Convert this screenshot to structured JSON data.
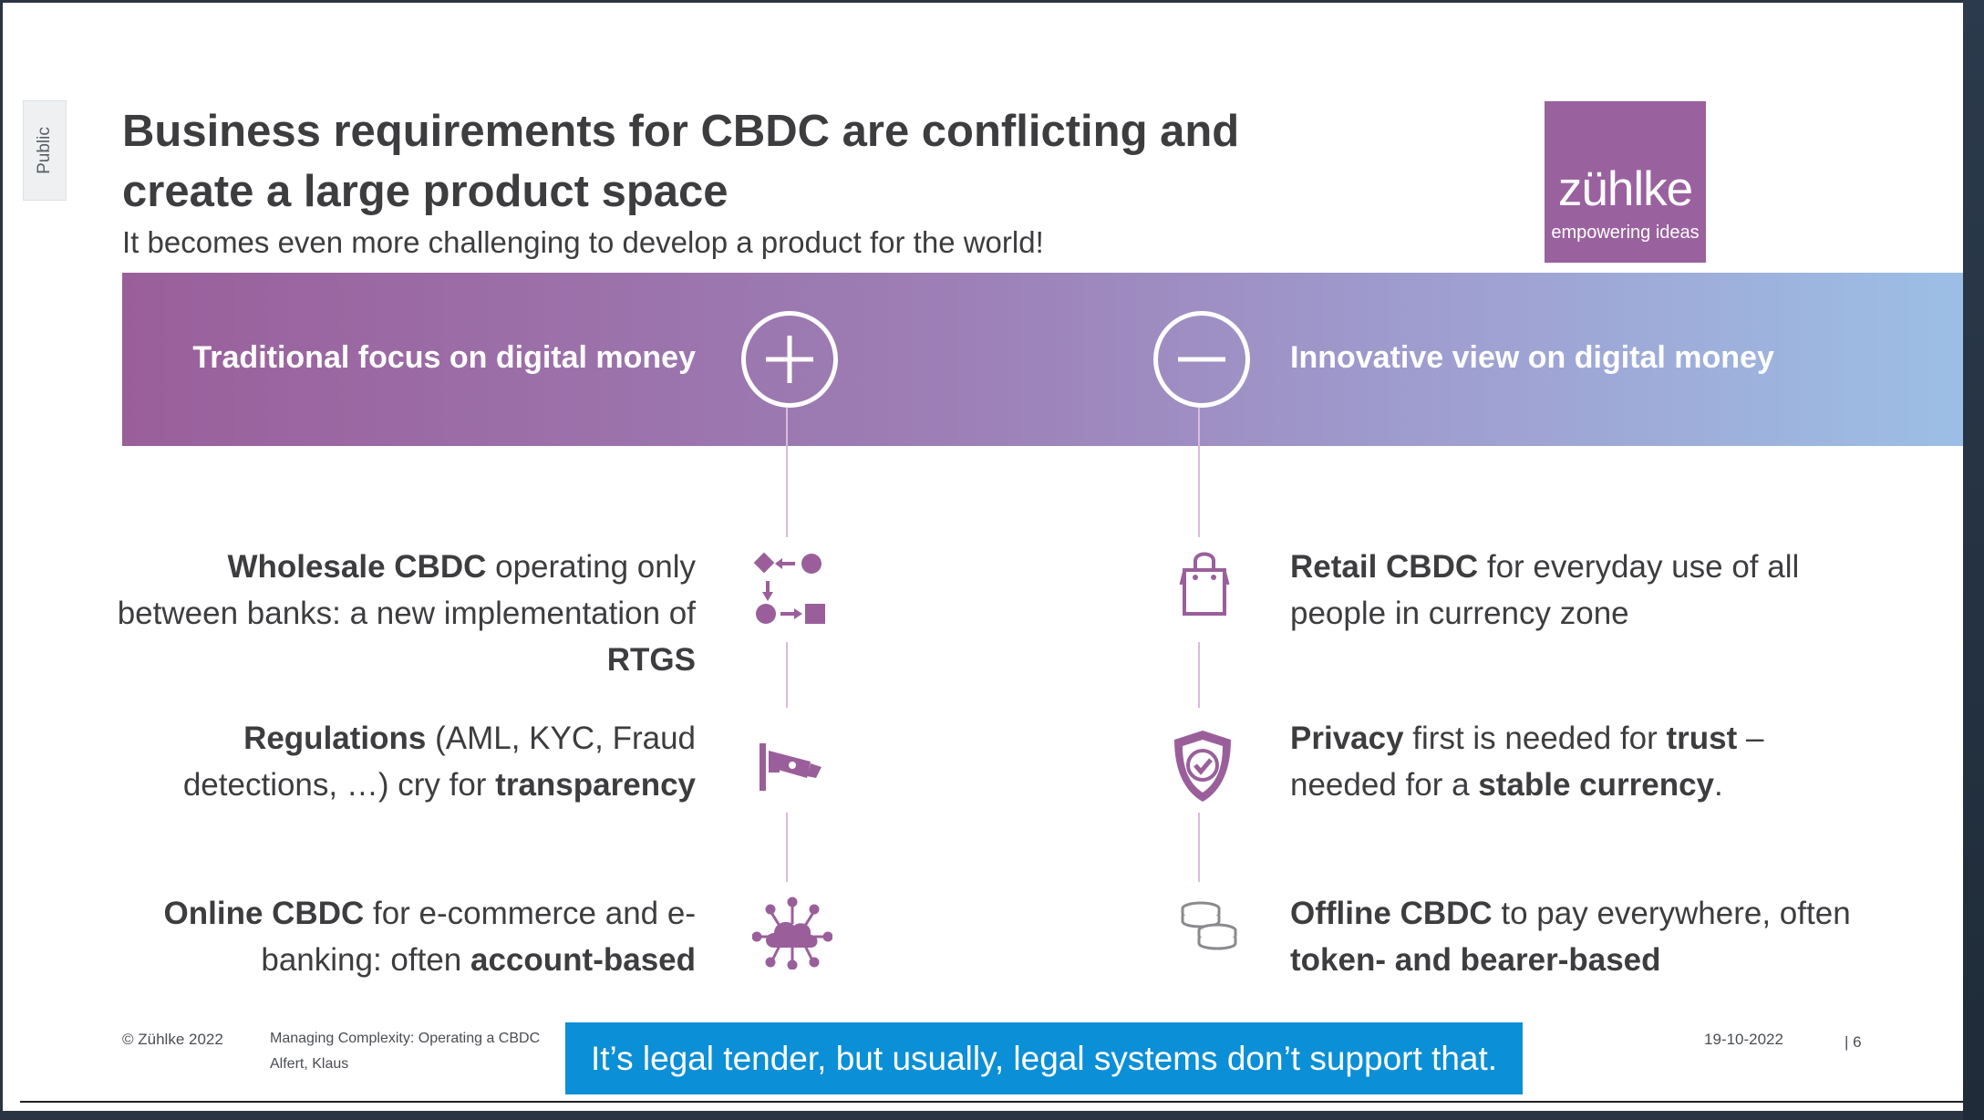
{
  "classification": "Public",
  "title": "Business requirements for CBDC are conflicting and create a large product space",
  "subtitle": "It becomes even more challenging to develop a product for the world!",
  "logo": {
    "word": "zühlke",
    "tagline": "empowering ideas",
    "color": "#9a619f"
  },
  "band": {
    "left_label": "Traditional focus on digital money",
    "right_label": "Innovative view on digital money",
    "plus_icon": "plus-icon",
    "minus_icon": "minus-icon"
  },
  "left_items": [
    {
      "icon": "flow-shapes-icon",
      "parts": [
        {
          "text": "Wholesale CBDC",
          "bold": true
        },
        {
          "text": " operating only between banks: a new implementation of ",
          "bold": false
        },
        {
          "text": "RTGS",
          "bold": true
        }
      ]
    },
    {
      "icon": "surveillance-camera-icon",
      "parts": [
        {
          "text": "Regulations",
          "bold": true
        },
        {
          "text": " (AML, KYC, Fraud detections, …) cry for ",
          "bold": false
        },
        {
          "text": "transparency",
          "bold": true
        }
      ]
    },
    {
      "icon": "cloud-network-icon",
      "parts": [
        {
          "text": "Online CBDC",
          "bold": true
        },
        {
          "text": " for e-commerce and e-banking: often ",
          "bold": false
        },
        {
          "text": "account-based",
          "bold": true
        }
      ]
    }
  ],
  "right_items": [
    {
      "icon": "shopping-bag-icon",
      "parts": [
        {
          "text": "Retail CBDC",
          "bold": true
        },
        {
          "text": " for everyday use of all people in currency zone",
          "bold": false
        }
      ]
    },
    {
      "icon": "shield-check-icon",
      "parts": [
        {
          "text": "Privacy",
          "bold": true
        },
        {
          "text": " first is needed for ",
          "bold": false
        },
        {
          "text": "trust",
          "bold": true
        },
        {
          "text": " – needed for a ",
          "bold": false
        },
        {
          "text": "stable currency",
          "bold": true
        },
        {
          "text": ".",
          "bold": false
        }
      ]
    },
    {
      "icon": "coin-stacks-icon",
      "parts": [
        {
          "text": "Offline CBDC",
          "bold": true
        },
        {
          "text": " to pay everywhere, often ",
          "bold": false
        },
        {
          "text": "token- and bearer-based",
          "bold": true
        }
      ]
    }
  ],
  "footer": {
    "copyright": "© Zühlke  2022",
    "presentation": "Managing Complexity: Operating a CBDC",
    "author": "Alfert, Klaus",
    "date": "19-10-2022",
    "page": "| 6"
  },
  "banner": {
    "text": "It’s legal tender, but usually, legal systems don’t support that.",
    "color": "#0b8fd6"
  },
  "colors": {
    "accent_purple": "#9a5f9b",
    "gradient_end_blue": "#9cbfe6",
    "text_dark": "#3d3d40"
  }
}
